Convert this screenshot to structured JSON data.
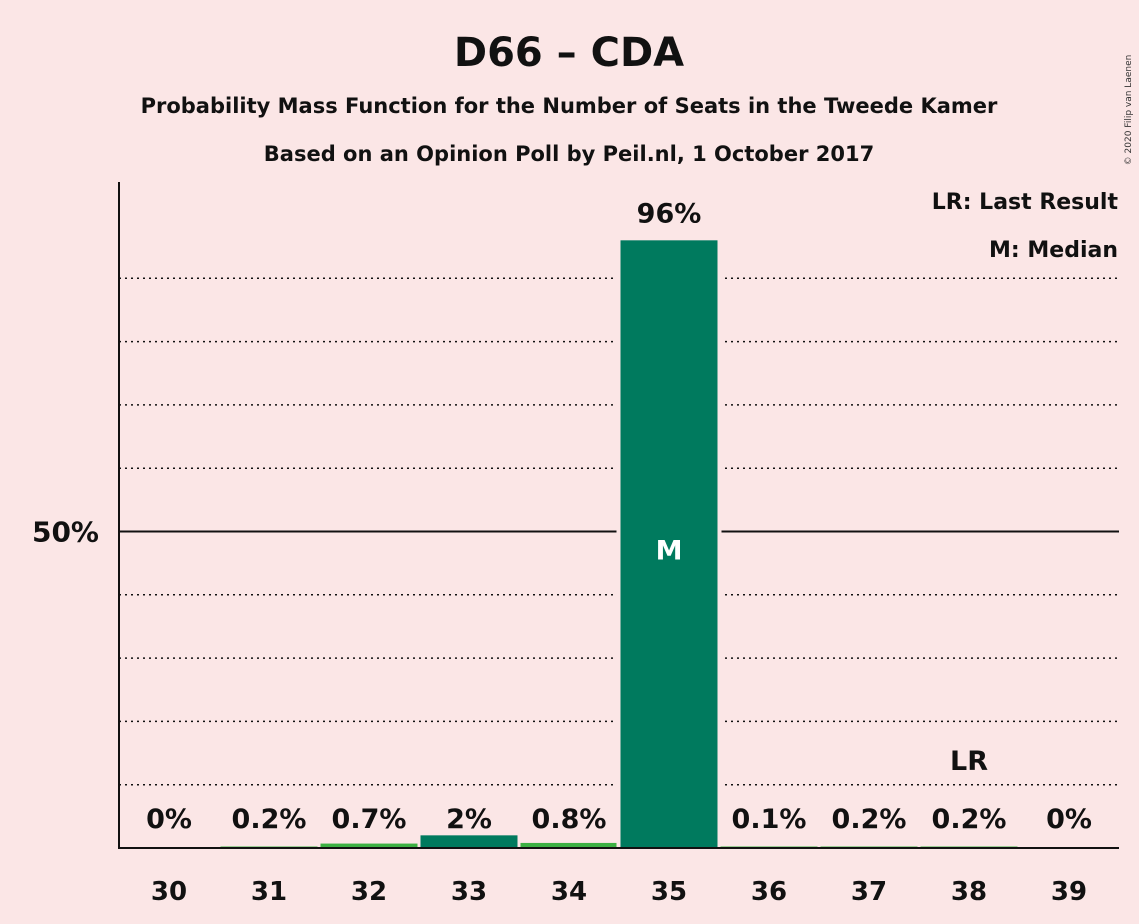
{
  "title": "D66 – CDA",
  "subtitle1": "Probability Mass Function for the Number of Seats in the Tweede Kamer",
  "subtitle2": "Based on an Opinion Poll by Peil.nl, 1 October 2017",
  "copyright": "© 2020 Filip van Laenen",
  "legend": {
    "lr": "LR: Last Result",
    "m": "M: Median"
  },
  "colors": {
    "background": "#fbe6e6",
    "bar_main": "#007a5e",
    "bar_minor": "#3cb043",
    "grid": "#111111"
  },
  "chart_data": {
    "type": "bar",
    "categories": [
      "30",
      "31",
      "32",
      "33",
      "34",
      "35",
      "36",
      "37",
      "38",
      "39"
    ],
    "values": [
      0,
      0.2,
      0.7,
      2,
      0.8,
      96,
      0.1,
      0.2,
      0.2,
      0
    ],
    "labels": [
      "0%",
      "0.2%",
      "0.7%",
      "2%",
      "0.8%",
      "96%",
      "0.1%",
      "0.2%",
      "0.2%",
      "0%"
    ],
    "ylim": [
      0,
      105
    ],
    "ytick_label": "50%",
    "ytick_value": 50,
    "dotted_gridlines": [
      10,
      20,
      30,
      40,
      60,
      70,
      80,
      90
    ],
    "median_seat": "35",
    "median_marker": "M",
    "last_result_seat": "38",
    "last_result_marker": "LR",
    "grid": true,
    "legend_position": "top-right"
  }
}
